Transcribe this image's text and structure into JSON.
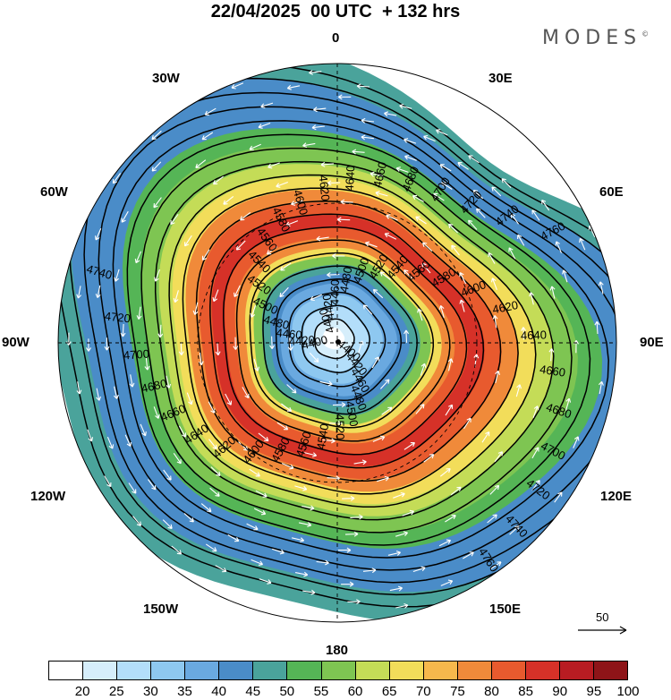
{
  "title": "22/04/2025  00 UTC  + 132 hrs",
  "logo": "MODES",
  "logo_mark": "©",
  "longitude_labels": {
    "n": "0",
    "e30": "30E",
    "e60": "60E",
    "e90": "90E",
    "e120": "120E",
    "e150": "150E",
    "s": "180",
    "w150": "150W",
    "w120": "120W",
    "w90": "90W",
    "w60": "60W",
    "w30": "30W"
  },
  "vector_reference": "50",
  "colorbar": {
    "labels": [
      "20",
      "25",
      "30",
      "35",
      "40",
      "45",
      "50",
      "55",
      "60",
      "65",
      "70",
      "75",
      "80",
      "85",
      "90",
      "95",
      "100"
    ],
    "colors": [
      "#ffffff",
      "#d6eefb",
      "#b3defa",
      "#8ec8f0",
      "#6aa9e0",
      "#4a8cc8",
      "#4aa39b",
      "#55b556",
      "#7ec552",
      "#c4dc57",
      "#f2dd5a",
      "#f6b84c",
      "#f08a3a",
      "#e85a2e",
      "#d63128",
      "#b81c22",
      "#8e1418"
    ]
  },
  "contours": [
    {
      "label": "4400",
      "level": 4400
    },
    {
      "label": "4420",
      "level": 4420
    },
    {
      "label": "4460",
      "level": 4460
    },
    {
      "label": "4480",
      "level": 4480
    },
    {
      "label": "4500",
      "level": 4500
    },
    {
      "label": "4520",
      "level": 4520
    },
    {
      "label": "4540",
      "level": 4540
    },
    {
      "label": "4560",
      "level": 4560
    },
    {
      "label": "4580",
      "level": 4580
    },
    {
      "label": "4600",
      "level": 4600
    },
    {
      "label": "4620",
      "level": 4620
    },
    {
      "label": "4640",
      "level": 4640
    },
    {
      "label": "4660",
      "level": 4660
    },
    {
      "label": "4680",
      "level": 4680
    },
    {
      "label": "4700",
      "level": 4700
    },
    {
      "label": "4720",
      "level": 4720
    },
    {
      "label": "4740",
      "level": 4740
    },
    {
      "label": "4760",
      "level": 4760
    },
    {
      "label": "4780",
      "level": 4780
    },
    {
      "label": "4800",
      "level": 4800
    }
  ]
}
